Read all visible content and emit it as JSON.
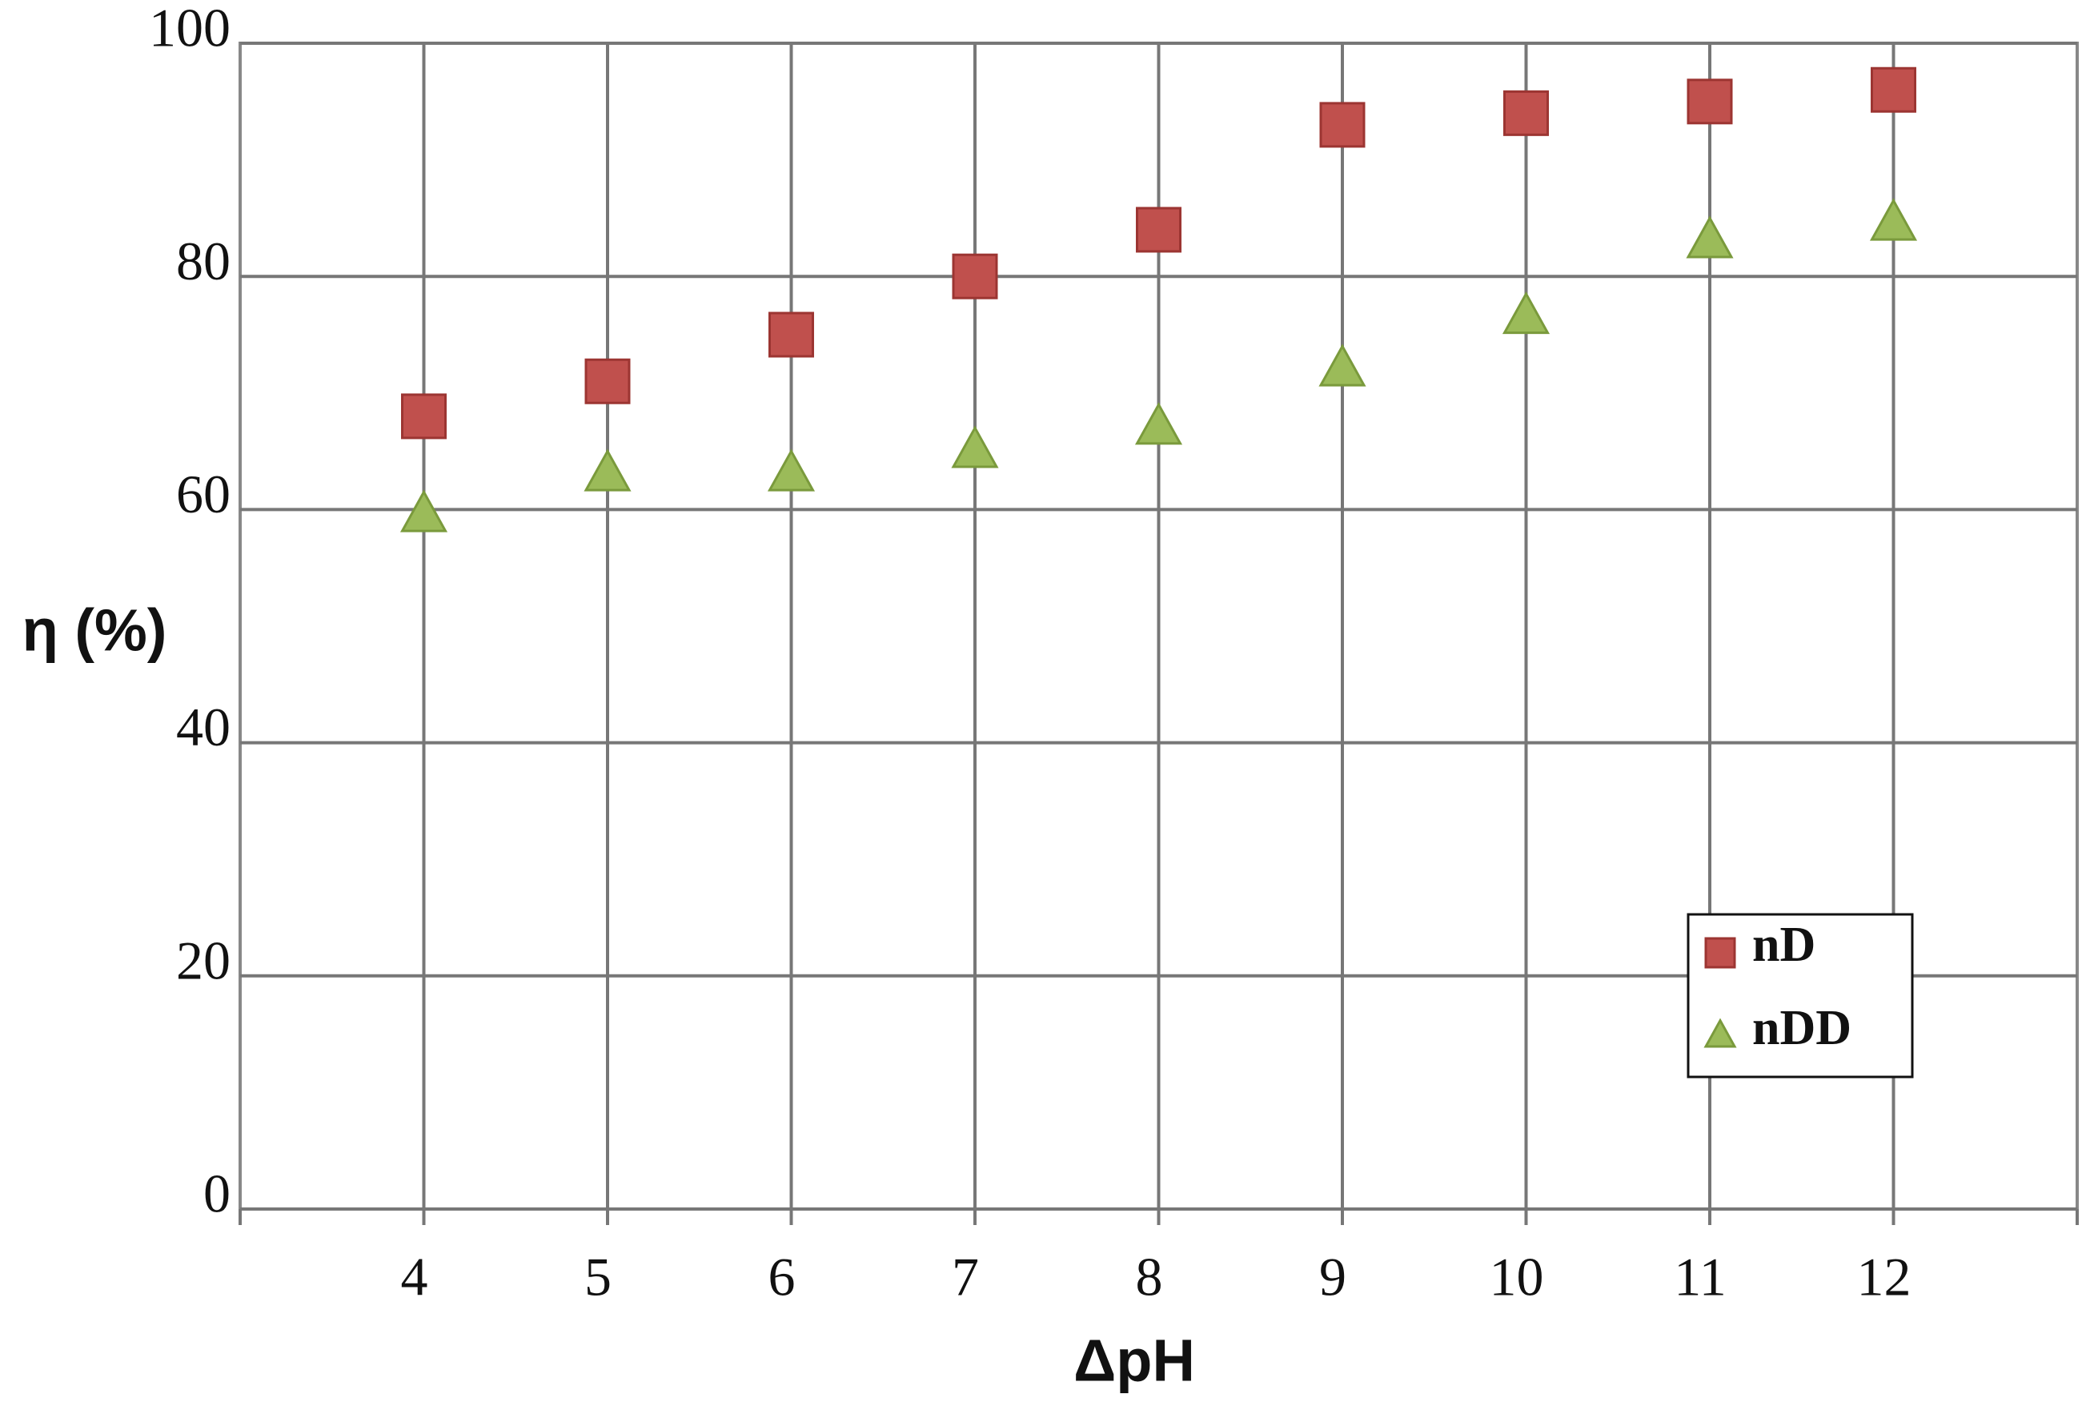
{
  "chart_data": {
    "type": "scatter",
    "x_label": "ΔpH",
    "y_label": "η (%)",
    "x": [
      4,
      5,
      6,
      7,
      8,
      9,
      10,
      11,
      12
    ],
    "series": [
      {
        "name": "nD",
        "color": "#c0504d",
        "marker": "square",
        "values": [
          68,
          71,
          75,
          80,
          84,
          93,
          94,
          95,
          96
        ]
      },
      {
        "name": "nDD",
        "color": "#9bbb59",
        "marker": "triangle",
        "values": [
          59.5,
          63,
          63,
          65,
          67,
          72,
          76.5,
          83,
          84.5
        ]
      }
    ],
    "xlim": [
      3,
      13
    ],
    "xticks": [
      4,
      5,
      6,
      7,
      8,
      9,
      10,
      11,
      12
    ],
    "ylim": [
      0,
      100
    ],
    "yticks": [
      0,
      20,
      40,
      60,
      80,
      100
    ],
    "grid": true,
    "legend_position": "lower right"
  }
}
